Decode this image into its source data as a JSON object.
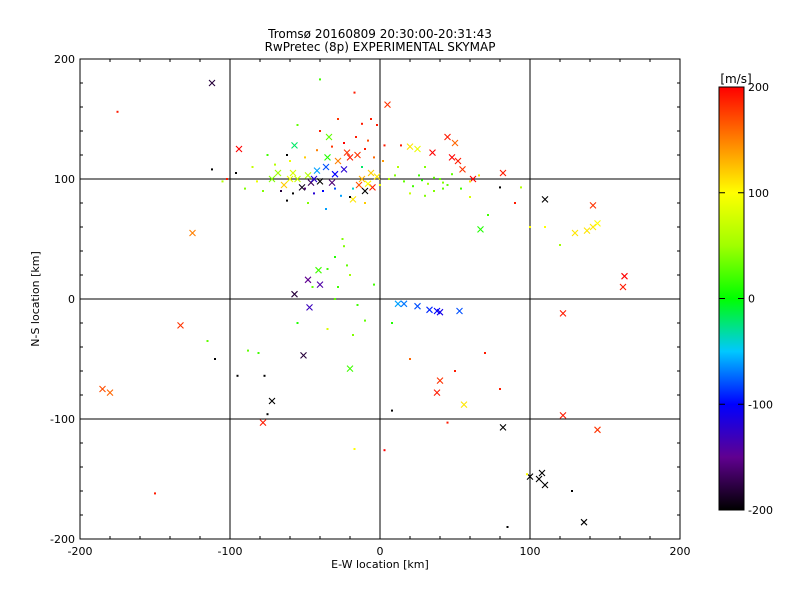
{
  "chart_data": {
    "type": "scatter",
    "title": "Tromsø 20160809 20:30:00-20:31:43",
    "subtitle": "RwPretec (8p) EXPERIMENTAL SKYMAP",
    "xlabel": "E-W location [km]",
    "ylabel": "N-S location [km]",
    "xlim": [
      -200,
      200
    ],
    "ylim": [
      -200,
      200
    ],
    "xticks": [
      "-200",
      "-100",
      "0",
      "100",
      "200"
    ],
    "yticks": [
      "-200",
      "-100",
      "0",
      "100",
      "200"
    ],
    "grid": true,
    "colorbar": {
      "unit": "[m/s]",
      "range": [
        -200,
        200
      ],
      "ticks": [
        "-200",
        "-100",
        "0",
        "100",
        "200"
      ]
    },
    "series": [
      {
        "marker": "cross",
        "points": [
          [
            -112,
            180
          ],
          [
            -94,
            125
          ],
          [
            -125,
            55
          ],
          [
            -133,
            -22
          ],
          [
            -185,
            -75
          ],
          [
            -180,
            -78
          ],
          [
            -72,
            -85
          ],
          [
            -78,
            -103
          ],
          [
            -57,
            4
          ],
          [
            -48,
            16
          ],
          [
            -40,
            12
          ],
          [
            -47,
            -7
          ],
          [
            -51,
            -47
          ],
          [
            -20,
            -58
          ],
          [
            -55,
            100
          ],
          [
            -48,
            103
          ],
          [
            -42,
            107
          ],
          [
            -36,
            110
          ],
          [
            -30,
            104
          ],
          [
            -24,
            108
          ],
          [
            -32,
            97
          ],
          [
            -40,
            98
          ],
          [
            -46,
            97
          ],
          [
            -52,
            93
          ],
          [
            -60,
            100
          ],
          [
            -64,
            95
          ],
          [
            -68,
            105
          ],
          [
            -72,
            100
          ],
          [
            -35,
            118
          ],
          [
            -28,
            115
          ],
          [
            -22,
            122
          ],
          [
            -14,
            95
          ],
          [
            -10,
            90
          ],
          [
            -18,
            83
          ],
          [
            -5,
            93
          ],
          [
            -34,
            135
          ],
          [
            -57,
            128
          ],
          [
            -41,
            24
          ],
          [
            5,
            162
          ],
          [
            20,
            127
          ],
          [
            25,
            125
          ],
          [
            35,
            122
          ],
          [
            45,
            135
          ],
          [
            50,
            130
          ],
          [
            48,
            118
          ],
          [
            52,
            115
          ],
          [
            55,
            108
          ],
          [
            62,
            100
          ],
          [
            82,
            105
          ],
          [
            110,
            83
          ],
          [
            130,
            55
          ],
          [
            138,
            57
          ],
          [
            142,
            60
          ],
          [
            145,
            63
          ],
          [
            142,
            78
          ],
          [
            163,
            19
          ],
          [
            162,
            10
          ],
          [
            122,
            -12
          ],
          [
            40,
            -68
          ],
          [
            38,
            -78
          ],
          [
            56,
            -88
          ],
          [
            82,
            -107
          ],
          [
            122,
            -97
          ],
          [
            145,
            -109
          ],
          [
            100,
            -148
          ],
          [
            106,
            -150
          ],
          [
            108,
            -145
          ],
          [
            110,
            -155
          ],
          [
            136,
            -186
          ],
          [
            67,
            58
          ],
          [
            -12,
            100
          ],
          [
            -6,
            105
          ],
          [
            -2,
            102
          ],
          [
            -8,
            96
          ],
          [
            12,
            -4
          ],
          [
            16,
            -4
          ],
          [
            25,
            -6
          ],
          [
            33,
            -9
          ],
          [
            38,
            -10
          ],
          [
            40,
            -11
          ],
          [
            53,
            -10
          ],
          [
            -15,
            120
          ],
          [
            -20,
            118
          ],
          [
            -44,
            100
          ],
          [
            -58,
            105
          ]
        ],
        "values": [
          -180,
          200,
          150,
          180,
          170,
          160,
          -200,
          190,
          -180,
          -150,
          -140,
          -130,
          -180,
          20,
          70,
          60,
          -60,
          -80,
          -100,
          -120,
          -160,
          -200,
          -170,
          -190,
          90,
          120,
          50,
          40,
          10,
          150,
          180,
          170,
          -200,
          110,
          190,
          30,
          -20,
          20,
          180,
          110,
          90,
          200,
          190,
          160,
          200,
          190,
          180,
          200,
          190,
          -200,
          110,
          110,
          110,
          100,
          180,
          200,
          190,
          190,
          180,
          190,
          110,
          -200,
          190,
          180,
          -200,
          -200,
          -200,
          -200,
          -200,
          10,
          130,
          120,
          110,
          100,
          -60,
          -70,
          -80,
          -90,
          -100,
          -110,
          -80,
          180,
          190,
          -120,
          80
        ]
      },
      {
        "marker": "dot",
        "points": [
          [
            -175,
            156
          ],
          [
            -112,
            108
          ],
          [
            -110,
            -50
          ],
          [
            -95,
            -64
          ],
          [
            -77,
            -64
          ],
          [
            -88,
            -43
          ],
          [
            -75,
            -96
          ],
          [
            -150,
            -162
          ],
          [
            -115,
            -35
          ],
          [
            -81,
            -45
          ],
          [
            -40,
            183
          ],
          [
            -17,
            172
          ],
          [
            -12,
            146
          ],
          [
            -6,
            150
          ],
          [
            -2,
            145
          ],
          [
            -10,
            125
          ],
          [
            3,
            128
          ],
          [
            14,
            128
          ],
          [
            30,
            110
          ],
          [
            40,
            100
          ],
          [
            45,
            95
          ],
          [
            60,
            98
          ],
          [
            66,
            103
          ],
          [
            80,
            93
          ],
          [
            90,
            80
          ],
          [
            100,
            60
          ],
          [
            120,
            45
          ],
          [
            -25,
            50
          ],
          [
            -30,
            35
          ],
          [
            -35,
            25
          ],
          [
            -20,
            20
          ],
          [
            -45,
            10
          ],
          [
            -30,
            0
          ],
          [
            -15,
            -5
          ],
          [
            -55,
            -20
          ],
          [
            -35,
            -25
          ],
          [
            -18,
            -30
          ],
          [
            8,
            -20
          ],
          [
            20,
            -50
          ],
          [
            50,
            -60
          ],
          [
            70,
            -45
          ],
          [
            80,
            -75
          ],
          [
            45,
            -103
          ],
          [
            8,
            -93
          ],
          [
            3,
            -126
          ],
          [
            -17,
            -125
          ],
          [
            98,
            -146
          ],
          [
            85,
            -190
          ],
          [
            128,
            -160
          ],
          [
            -102,
            100
          ],
          [
            -85,
            110
          ],
          [
            -78,
            90
          ],
          [
            -62,
            82
          ],
          [
            -48,
            80
          ],
          [
            -36,
            75
          ],
          [
            -20,
            85
          ],
          [
            -10,
            80
          ],
          [
            0,
            95
          ],
          [
            6,
            100
          ],
          [
            10,
            103
          ],
          [
            16,
            98
          ],
          [
            22,
            94
          ],
          [
            28,
            99
          ],
          [
            32,
            96
          ],
          [
            36,
            101
          ],
          [
            42,
            97
          ],
          [
            48,
            104
          ],
          [
            54,
            92
          ],
          [
            20,
            88
          ],
          [
            30,
            86
          ],
          [
            -70,
            112
          ],
          [
            -60,
            115
          ],
          [
            -50,
            118
          ],
          [
            -42,
            124
          ],
          [
            -32,
            127
          ],
          [
            -24,
            130
          ],
          [
            -16,
            135
          ],
          [
            -8,
            132
          ],
          [
            -4,
            118
          ],
          [
            2,
            115
          ],
          [
            -66,
            90
          ],
          [
            -58,
            88
          ],
          [
            -50,
            92
          ],
          [
            -44,
            88
          ],
          [
            -38,
            90
          ],
          [
            -30,
            92
          ],
          [
            -26,
            86
          ],
          [
            -18,
            92
          ],
          [
            -12,
            110
          ],
          [
            -28,
            150
          ],
          [
            -40,
            140
          ],
          [
            -55,
            145
          ],
          [
            -62,
            120
          ],
          [
            -75,
            120
          ],
          [
            -82,
            98
          ],
          [
            -90,
            92
          ],
          [
            -96,
            105
          ],
          [
            -105,
            98
          ],
          [
            36,
            90
          ],
          [
            42,
            92
          ],
          [
            26,
            103
          ],
          [
            12,
            110
          ],
          [
            60,
            85
          ],
          [
            72,
            70
          ],
          [
            94,
            93
          ],
          [
            110,
            60
          ],
          [
            -24,
            44
          ],
          [
            -22,
            28
          ],
          [
            -28,
            10
          ],
          [
            -10,
            -18
          ],
          [
            -4,
            12
          ]
        ],
        "values": [
          190,
          -200,
          -200,
          -200,
          -200,
          30,
          -200,
          190,
          30,
          20,
          20,
          190,
          190,
          190,
          190,
          190,
          190,
          190,
          40,
          30,
          30,
          110,
          110,
          -200,
          190,
          100,
          50,
          40,
          10,
          20,
          50,
          30,
          30,
          20,
          10,
          80,
          40,
          10,
          160,
          190,
          190,
          190,
          190,
          -200,
          200,
          100,
          100,
          -200,
          -200,
          190,
          70,
          40,
          -200,
          40,
          -60,
          -200,
          120,
          90,
          60,
          40,
          30,
          20,
          10,
          50,
          30,
          40,
          30,
          20,
          70,
          40,
          60,
          90,
          120,
          150,
          180,
          200,
          190,
          170,
          160,
          140,
          -180,
          -200,
          -160,
          -120,
          -100,
          -80,
          -60,
          -40,
          -20,
          180,
          190,
          30,
          -200,
          20,
          90,
          40,
          -200,
          60,
          40,
          30,
          20,
          60,
          80,
          20,
          60,
          100,
          40,
          30,
          20,
          30,
          20
        ]
      }
    ]
  }
}
